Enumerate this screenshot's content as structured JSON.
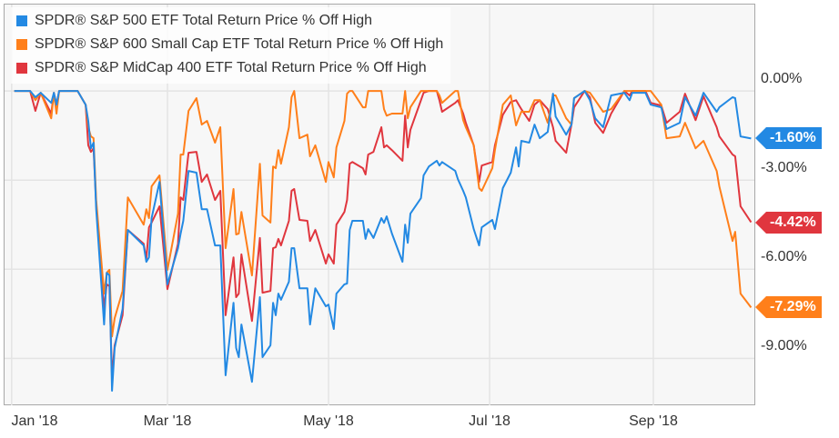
{
  "chart_data": {
    "type": "line",
    "title": "",
    "xlabel": "",
    "ylabel": "",
    "ylim": [
      -10.58,
      2.94
    ],
    "xlim": [
      "2017-12-29",
      "2018-10-08"
    ],
    "grid": true,
    "legend_position": "top-left",
    "x_ticks": [
      {
        "date": "2018-01-01",
        "label": "Jan '18"
      },
      {
        "date": "2018-03-01",
        "label": "Mar '18"
      },
      {
        "date": "2018-05-01",
        "label": "May '18"
      },
      {
        "date": "2018-07-01",
        "label": "Jul '18"
      },
      {
        "date": "2018-09-01",
        "label": "Sep '18"
      }
    ],
    "y_ticks": [
      {
        "value": 0,
        "label": "0.00%"
      },
      {
        "value": -3,
        "label": "-3.00%"
      },
      {
        "value": -6,
        "label": "-6.00%"
      },
      {
        "value": -9,
        "label": "-9.00%"
      }
    ],
    "x": [
      "2018-01-02",
      "2018-01-08",
      "2018-01-10",
      "2018-01-12",
      "2018-01-16",
      "2018-01-17",
      "2018-01-18",
      "2018-01-19",
      "2018-01-26",
      "2018-01-29",
      "2018-01-30",
      "2018-01-31",
      "2018-02-01",
      "2018-02-02",
      "2018-02-05",
      "2018-02-06",
      "2018-02-07",
      "2018-02-08",
      "2018-02-09",
      "2018-02-12",
      "2018-02-14",
      "2018-02-20",
      "2018-02-21",
      "2018-02-22",
      "2018-02-23",
      "2018-02-26",
      "2018-03-01",
      "2018-03-05",
      "2018-03-06",
      "2018-03-07",
      "2018-03-09",
      "2018-03-12",
      "2018-03-14",
      "2018-03-16",
      "2018-03-19",
      "2018-03-21",
      "2018-03-23",
      "2018-03-26",
      "2018-03-27",
      "2018-03-28",
      "2018-03-29",
      "2018-04-02",
      "2018-04-05",
      "2018-04-06",
      "2018-04-09",
      "2018-04-10",
      "2018-04-11",
      "2018-04-12",
      "2018-04-13",
      "2018-04-16",
      "2018-04-17",
      "2018-04-18",
      "2018-04-20",
      "2018-04-23",
      "2018-04-24",
      "2018-04-26",
      "2018-04-30",
      "2018-05-01",
      "2018-05-03",
      "2018-05-04",
      "2018-05-07",
      "2018-05-08",
      "2018-05-09",
      "2018-05-10",
      "2018-05-14",
      "2018-05-15",
      "2018-05-16",
      "2018-05-18",
      "2018-05-21",
      "2018-05-22",
      "2018-05-23",
      "2018-05-25",
      "2018-05-29",
      "2018-05-30",
      "2018-05-31",
      "2018-06-01",
      "2018-06-05",
      "2018-06-06",
      "2018-06-08",
      "2018-06-11",
      "2018-06-12",
      "2018-06-13",
      "2018-06-18",
      "2018-06-19",
      "2018-06-21",
      "2018-06-22",
      "2018-06-25",
      "2018-06-27",
      "2018-06-28",
      "2018-07-02",
      "2018-07-03",
      "2018-07-06",
      "2018-07-09",
      "2018-07-11",
      "2018-07-12",
      "2018-07-13",
      "2018-07-16",
      "2018-07-18",
      "2018-07-20",
      "2018-07-23",
      "2018-07-25",
      "2018-07-26",
      "2018-07-30",
      "2018-08-01",
      "2018-08-02",
      "2018-08-06",
      "2018-08-08",
      "2018-08-10",
      "2018-08-13",
      "2018-08-16",
      "2018-08-21",
      "2018-08-23",
      "2018-08-24",
      "2018-08-29",
      "2018-08-31",
      "2018-09-04",
      "2018-09-06",
      "2018-09-11",
      "2018-09-13",
      "2018-09-17",
      "2018-09-20",
      "2018-09-25",
      "2018-09-26",
      "2018-10-01",
      "2018-10-02",
      "2018-10-04",
      "2018-10-08"
    ],
    "series": [
      {
        "name": "SPDR® S&P 500 ETF Total Return Price % Off High",
        "color": "#2389e3",
        "last_label": "-1.60%",
        "values": [
          0,
          0,
          -0.21,
          -0.06,
          -0.4,
          -0.06,
          -0.46,
          0,
          0,
          -0.46,
          -1.01,
          -1.93,
          -1.74,
          -3.98,
          -7.86,
          -6.12,
          -6.21,
          -10.09,
          -8.65,
          -7.34,
          -4.68,
          -5.2,
          -5.75,
          -5.6,
          -4.28,
          -3.06,
          -6.51,
          -5.29,
          -4.8,
          -4.37,
          -2.69,
          -2.75,
          -3.98,
          -3.98,
          -5.2,
          -5.2,
          -9.57,
          -7.13,
          -8.65,
          -8.96,
          -7.86,
          -9.79,
          -6.94,
          -8.96,
          -8.56,
          -7.13,
          -7.55,
          -6.82,
          -7.03,
          -6.42,
          -5.29,
          -5.29,
          -6.64,
          -6.64,
          -7.86,
          -6.64,
          -7.25,
          -7.19,
          -8.01,
          -6.82,
          -6.51,
          -6.48,
          -4.68,
          -4.37,
          -4.37,
          -4.98,
          -4.65,
          -4.95,
          -4.28,
          -4.44,
          -4.22,
          -4.8,
          -5.75,
          -4.5,
          -5.11,
          -4.13,
          -3.61,
          -2.84,
          -2.54,
          -2.35,
          -2.51,
          -2.39,
          -2.69,
          -2.97,
          -3.36,
          -3.58,
          -4.65,
          -5.2,
          -4.59,
          -4.34,
          -4.65,
          -3.27,
          -2.75,
          -1.9,
          -2.54,
          -1.68,
          -1.74,
          -1.13,
          -1.59,
          -1.38,
          -0.09,
          -0.86,
          -1.47,
          -1.13,
          -0.24,
          0,
          -0.31,
          -0.92,
          -1.22,
          -0.15,
          -0.06,
          -0.31,
          -0.06,
          -0.06,
          -0.46,
          -0.55,
          -1.28,
          -1.07,
          -0.21,
          -0.83,
          -0.06,
          -0.7,
          -0.55,
          -0.21,
          -0.24,
          -1.53,
          -1.6
        ]
      },
      {
        "name": "SPDR® S&P 600 Small Cap ETF Total Return Price % Off High",
        "color": "#ff7f1a",
        "last_label": "-7.29%",
        "values": [
          0,
          0,
          -0.31,
          -0.06,
          -0.92,
          -0.06,
          -0.76,
          0,
          0,
          -0.46,
          -1.22,
          -1.53,
          -1.59,
          -3.67,
          -6.82,
          -6.12,
          -6.02,
          -8.26,
          -7.65,
          -6.73,
          -3.58,
          -4.5,
          -3.98,
          -4.28,
          -3.21,
          -2.84,
          -6.02,
          -4.13,
          -2.14,
          -2.14,
          -0.67,
          -0.24,
          -1.13,
          -1.01,
          -1.74,
          -1.22,
          -5.29,
          -3.3,
          -4.83,
          -4.8,
          -4.07,
          -6.21,
          -2.45,
          -4.19,
          -4.43,
          -2.54,
          -2.6,
          -1.99,
          -2.45,
          -1.22,
          -0.21,
          0,
          -1.59,
          -1.47,
          -2.2,
          -1.83,
          -3.06,
          -2.39,
          -2.91,
          -1.9,
          -1.01,
          -0.09,
          0,
          0,
          -0.55,
          -0.55,
          0,
          0,
          0,
          -0.61,
          -0.83,
          -0.76,
          -0.76,
          0,
          -0.92,
          -0.55,
          0,
          0,
          0,
          0,
          -0.15,
          -0.4,
          0,
          0,
          -0.98,
          -1.22,
          -1.83,
          -3.27,
          -3.36,
          -2.6,
          -1.99,
          -0.46,
          -0.15,
          -1.16,
          -0.92,
          -0.7,
          -0.7,
          -0.31,
          -0.31,
          -1.07,
          -0.15,
          -0.15,
          -0.92,
          -1.13,
          -0.24,
          0,
          -0.06,
          -0.31,
          -0.7,
          -0.61,
          0,
          0,
          0,
          0,
          0,
          -0.46,
          -1.59,
          -1.53,
          -1.07,
          -1.93,
          -1.68,
          -2.69,
          -3.21,
          -5.05,
          -4.74,
          -6.82,
          -7.29
        ]
      },
      {
        "name": "SPDR® S&P MidCap 400 ETF Total Return Price % Off High",
        "color": "#e0363e",
        "last_label": "-4.42%",
        "values": [
          0,
          0,
          -0.67,
          -0.06,
          -0.76,
          -0.06,
          -0.46,
          0,
          0,
          -0.46,
          -1.83,
          -2.05,
          -1.93,
          -3.82,
          -7.34,
          -6.51,
          -6.57,
          -9.63,
          -8.56,
          -7.55,
          -4.68,
          -5.14,
          -5.66,
          -4.59,
          -4.43,
          -3.88,
          -6.67,
          -5.14,
          -3.58,
          -3.67,
          -2.08,
          -2.05,
          -3.06,
          -2.81,
          -3.67,
          -3.36,
          -7.55,
          -5.6,
          -6.94,
          -6.82,
          -5.5,
          -7.74,
          -4.95,
          -6.79,
          -6.73,
          -5.29,
          -5.26,
          -4.98,
          -5.2,
          -4.37,
          -3.36,
          -3.3,
          -4.34,
          -4.37,
          -5.05,
          -4.68,
          -5.81,
          -5.5,
          -5.81,
          -4.5,
          -4.07,
          -3.67,
          -2.45,
          -2.39,
          -2.6,
          -2.81,
          -2.14,
          -2.05,
          -1.22,
          -1.9,
          -1.83,
          -1.99,
          -2.35,
          -0.83,
          -1.9,
          -1.31,
          -0.31,
          -0.06,
          0,
          0,
          -0.31,
          -0.7,
          -0.4,
          -0.31,
          -0.76,
          -1.07,
          -1.83,
          -3.06,
          -2.51,
          -2.39,
          -1.83,
          -0.8,
          -0.37,
          -0.31,
          -0.46,
          -0.61,
          -1.01,
          -0.46,
          -0.31,
          -0.61,
          -1.22,
          -1.68,
          -2.08,
          -1.13,
          -0.55,
          0,
          -0.21,
          -1.07,
          -1.41,
          -0.76,
          0,
          -0.15,
          0,
          0,
          -0.4,
          -0.49,
          -1.07,
          -0.7,
          -0.09,
          -0.98,
          -0.18,
          -1.22,
          -1.53,
          -2.14,
          -2.2,
          -3.88,
          -4.42
        ]
      }
    ]
  }
}
